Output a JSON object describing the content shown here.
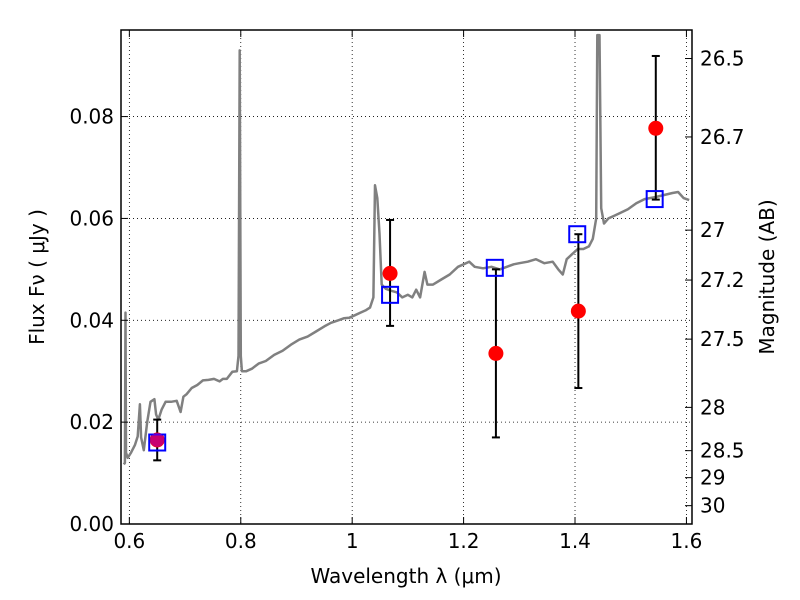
{
  "chart_data": {
    "type": "scatter",
    "xlabel": "Wavelength  λ (μm)",
    "ylabel": "Flux  Fν  ( μJy )",
    "y2label": "Magnitude (AB)",
    "xlim": [
      0.585,
      1.61
    ],
    "ylim": [
      0.0,
      0.097
    ],
    "x_ticks": [
      0.6,
      0.8,
      1.0,
      1.2,
      1.4,
      1.6
    ],
    "x_tick_labels": [
      "0.6",
      "0.8",
      "1",
      "1.2",
      "1.4",
      "1.6"
    ],
    "y_ticks": [
      0.0,
      0.02,
      0.04,
      0.06,
      0.08
    ],
    "y_tick_labels": [
      "0.00",
      "0.02",
      "0.04",
      "0.06",
      "0.08"
    ],
    "y2_ticks": [
      {
        "label": "26.5",
        "flux": 0.0914
      },
      {
        "label": "26.7",
        "flux": 0.076
      },
      {
        "label": "27",
        "flux": 0.0577
      },
      {
        "label": "27.2",
        "flux": 0.0479
      },
      {
        "label": "27.5",
        "flux": 0.0363
      },
      {
        "label": "28",
        "flux": 0.0229
      },
      {
        "label": "28.5",
        "flux": 0.0144
      },
      {
        "label": "29",
        "flux": 0.0091
      },
      {
        "label": "30",
        "flux": 0.0036
      }
    ],
    "grid": true,
    "grid_style": "dotted",
    "series": [
      {
        "kind": "spectrum",
        "color": "#808080",
        "points": [
          [
            0.59,
            0.0117
          ],
          [
            0.592,
            0.012
          ],
          [
            0.593,
            0.0415
          ],
          [
            0.594,
            0.014
          ],
          [
            0.597,
            0.013
          ],
          [
            0.603,
            0.014
          ],
          [
            0.61,
            0.0155
          ],
          [
            0.615,
            0.0172
          ],
          [
            0.619,
            0.0235
          ],
          [
            0.621,
            0.017
          ],
          [
            0.626,
            0.0145
          ],
          [
            0.632,
            0.02
          ],
          [
            0.638,
            0.024
          ],
          [
            0.645,
            0.0245
          ],
          [
            0.648,
            0.0215
          ],
          [
            0.652,
            0.0205
          ],
          [
            0.658,
            0.0225
          ],
          [
            0.665,
            0.024
          ],
          [
            0.675,
            0.024
          ],
          [
            0.685,
            0.0242
          ],
          [
            0.692,
            0.022
          ],
          [
            0.697,
            0.025
          ],
          [
            0.703,
            0.0255
          ],
          [
            0.712,
            0.0267
          ],
          [
            0.722,
            0.0273
          ],
          [
            0.732,
            0.0282
          ],
          [
            0.742,
            0.0283
          ],
          [
            0.752,
            0.0285
          ],
          [
            0.762,
            0.028
          ],
          [
            0.768,
            0.0285
          ],
          [
            0.775,
            0.0285
          ],
          [
            0.785,
            0.0299
          ],
          [
            0.793,
            0.03
          ],
          [
            0.796,
            0.033
          ],
          [
            0.798,
            0.093
          ],
          [
            0.8,
            0.033
          ],
          [
            0.802,
            0.03
          ],
          [
            0.81,
            0.03
          ],
          [
            0.82,
            0.0305
          ],
          [
            0.832,
            0.0315
          ],
          [
            0.845,
            0.032
          ],
          [
            0.86,
            0.0332
          ],
          [
            0.875,
            0.034
          ],
          [
            0.89,
            0.0352
          ],
          [
            0.905,
            0.0362
          ],
          [
            0.92,
            0.0368
          ],
          [
            0.935,
            0.0378
          ],
          [
            0.95,
            0.0388
          ],
          [
            0.962,
            0.0395
          ],
          [
            0.975,
            0.04
          ],
          [
            0.985,
            0.0404
          ],
          [
            0.995,
            0.0405
          ],
          [
            1.005,
            0.041
          ],
          [
            1.015,
            0.0415
          ],
          [
            1.025,
            0.042
          ],
          [
            1.032,
            0.0425
          ],
          [
            1.038,
            0.0445
          ],
          [
            1.041,
            0.0665
          ],
          [
            1.045,
            0.064
          ],
          [
            1.049,
            0.057
          ],
          [
            1.053,
            0.047
          ],
          [
            1.06,
            0.0462
          ],
          [
            1.07,
            0.0458
          ],
          [
            1.08,
            0.0455
          ],
          [
            1.09,
            0.0445
          ],
          [
            1.1,
            0.045
          ],
          [
            1.108,
            0.0445
          ],
          [
            1.115,
            0.046
          ],
          [
            1.122,
            0.0445
          ],
          [
            1.13,
            0.0495
          ],
          [
            1.135,
            0.047
          ],
          [
            1.145,
            0.047
          ],
          [
            1.16,
            0.048
          ],
          [
            1.175,
            0.049
          ],
          [
            1.19,
            0.0505
          ],
          [
            1.2,
            0.051
          ],
          [
            1.21,
            0.0515
          ],
          [
            1.22,
            0.0505
          ],
          [
            1.235,
            0.0502
          ],
          [
            1.25,
            0.0505
          ],
          [
            1.265,
            0.05
          ],
          [
            1.28,
            0.0506
          ],
          [
            1.29,
            0.051
          ],
          [
            1.3,
            0.0512
          ],
          [
            1.315,
            0.0515
          ],
          [
            1.33,
            0.052
          ],
          [
            1.345,
            0.0512
          ],
          [
            1.36,
            0.0515
          ],
          [
            1.37,
            0.05
          ],
          [
            1.378,
            0.049
          ],
          [
            1.385,
            0.052
          ],
          [
            1.395,
            0.053
          ],
          [
            1.405,
            0.054
          ],
          [
            1.415,
            0.054
          ],
          [
            1.425,
            0.0545
          ],
          [
            1.432,
            0.056
          ],
          [
            1.438,
            0.06
          ],
          [
            1.44,
            0.096
          ],
          [
            1.444,
            0.096
          ],
          [
            1.447,
            0.062
          ],
          [
            1.452,
            0.059
          ],
          [
            1.46,
            0.06
          ],
          [
            1.47,
            0.0605
          ],
          [
            1.48,
            0.061
          ],
          [
            1.495,
            0.0618
          ],
          [
            1.51,
            0.063
          ],
          [
            1.525,
            0.0638
          ],
          [
            1.545,
            0.0642
          ],
          [
            1.56,
            0.0646
          ],
          [
            1.575,
            0.065
          ],
          [
            1.585,
            0.0652
          ],
          [
            1.595,
            0.064
          ],
          [
            1.605,
            0.0636
          ]
        ]
      },
      {
        "kind": "observed",
        "marker": "circle",
        "color": "#ff0000",
        "points": [
          {
            "x": 0.65,
            "y": 0.0165,
            "err_low": 0.004,
            "err_high": 0.004
          },
          {
            "x": 1.068,
            "y": 0.0492,
            "err_low": 0.0103,
            "err_high": 0.0105
          },
          {
            "x": 1.258,
            "y": 0.0335,
            "err_low": 0.0165,
            "err_high": 0.0165
          },
          {
            "x": 1.406,
            "y": 0.0418,
            "err_low": 0.0151,
            "err_high": 0.0151
          },
          {
            "x": 1.545,
            "y": 0.0777,
            "err_low": 0.014,
            "err_high": 0.0142
          }
        ]
      },
      {
        "kind": "model",
        "marker": "square",
        "color": "#0000ff",
        "points": [
          {
            "x": 0.65,
            "y": 0.016
          },
          {
            "x": 1.068,
            "y": 0.045
          },
          {
            "x": 1.256,
            "y": 0.0503
          },
          {
            "x": 1.404,
            "y": 0.0569
          },
          {
            "x": 1.543,
            "y": 0.0638
          }
        ]
      }
    ]
  }
}
